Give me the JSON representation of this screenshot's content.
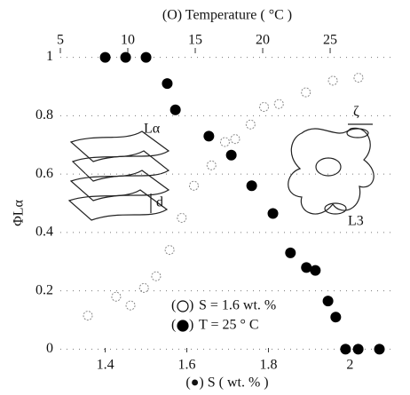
{
  "chart_data": {
    "type": "scatter",
    "x_label": "(●) S ( wt. % )",
    "x2_label": "(O) Temperature ( °C )",
    "y_label": "ΦLα",
    "xlim": [
      1.29,
      2.11
    ],
    "xticks": [
      1.4,
      1.6,
      1.8,
      2
    ],
    "x2lim": [
      5,
      29.8
    ],
    "x2ticks": [
      5,
      10,
      15,
      20,
      25
    ],
    "ylim": [
      -0.02,
      1.02
    ],
    "yticks": [
      0,
      0.2,
      0.4,
      0.6,
      0.8,
      1
    ],
    "series": [
      {
        "name": "T = 25 ° C",
        "color": "#000000",
        "marker": "filled",
        "x": [
          1.4,
          1.45,
          1.5,
          1.552,
          1.572,
          1.654,
          1.709,
          1.759,
          1.811,
          1.854,
          1.893,
          1.915,
          1.946,
          1.965,
          1.989,
          2.02,
          2.072
        ],
        "values": [
          1,
          1,
          1,
          0.91,
          0.82,
          0.73,
          0.665,
          0.56,
          0.465,
          0.33,
          0.28,
          0.27,
          0.165,
          0.11,
          0,
          0,
          0
        ]
      },
      {
        "name": "S = 1.6 wt. %",
        "color": "#888888",
        "marker": "open",
        "axis": "x2",
        "x": [
          7.04,
          9.14,
          10.2,
          11.2,
          12.1,
          13.1,
          14,
          14.9,
          16.2,
          17.2,
          17.96,
          19.1,
          20.1,
          21.2,
          23.2,
          25.2,
          27.1
        ],
        "values": [
          0.115,
          0.18,
          0.15,
          0.21,
          0.25,
          0.34,
          0.45,
          0.56,
          0.63,
          0.71,
          0.72,
          0.77,
          0.83,
          0.84,
          0.88,
          0.92,
          0.93
        ]
      }
    ],
    "annotations": [
      "Lα",
      "d",
      "ζ",
      "L3"
    ]
  }
}
